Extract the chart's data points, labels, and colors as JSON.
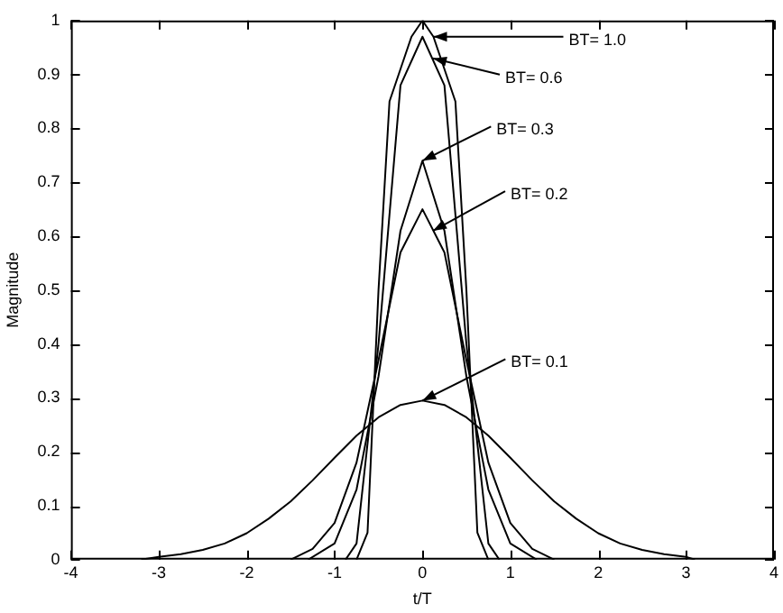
{
  "chart_data": {
    "type": "line",
    "xlabel": "t/T",
    "ylabel": "Magnitude",
    "marker": "none",
    "line_style": "solid",
    "grid": false,
    "legend": false,
    "xlim": [
      -4,
      4
    ],
    "xticks": [
      -4,
      -3,
      -2,
      -1,
      0,
      1,
      2,
      3,
      4
    ],
    "ylim": [
      0,
      1
    ],
    "yticks": [
      0,
      0.1,
      0.2,
      0.3,
      0.4,
      0.5,
      0.6,
      0.7,
      0.8,
      0.9,
      1
    ],
    "series": [
      {
        "color": "#000000",
        "x": [
          -3.2,
          -3,
          -2.75,
          -2.5,
          -2.25,
          -2,
          -1.75,
          -1.5,
          -1.25,
          -1,
          -0.75,
          -0.5,
          -0.25,
          0,
          0.25,
          0.5,
          0.75,
          1,
          1.25,
          1.5,
          1.75,
          2,
          2.25,
          2.5,
          2.75,
          3,
          3.1
        ],
        "values": [
          0,
          0.005,
          0.01,
          0.018,
          0.03,
          0.049,
          0.076,
          0.108,
          0.147,
          0.189,
          0.23,
          0.264,
          0.287,
          0.295,
          0.287,
          0.264,
          0.23,
          0.189,
          0.147,
          0.108,
          0.076,
          0.049,
          0.03,
          0.018,
          0.01,
          0.005,
          0
        ]
      },
      {
        "color": "#000000",
        "x": [
          -1.5,
          -1.25,
          -1,
          -0.75,
          -0.5,
          -0.25,
          0,
          0.25,
          0.5,
          0.75,
          1,
          1.25,
          1.5
        ],
        "values": [
          0,
          0.02,
          0.068,
          0.18,
          0.37,
          0.57,
          0.65,
          0.57,
          0.37,
          0.18,
          0.068,
          0.02,
          0
        ]
      },
      {
        "color": "#000000",
        "x": [
          -1.3,
          -1,
          -0.75,
          -0.5,
          -0.25,
          0,
          0.25,
          0.5,
          0.75,
          1,
          1.3
        ],
        "values": [
          0,
          0.03,
          0.13,
          0.34,
          0.61,
          0.74,
          0.61,
          0.34,
          0.13,
          0.03,
          0
        ]
      },
      {
        "color": "#000000",
        "x": [
          -0.875,
          -0.75,
          -0.5,
          -0.25,
          0,
          0.25,
          0.5,
          0.75,
          0.875
        ],
        "values": [
          0,
          0.03,
          0.4,
          0.88,
          0.97,
          0.88,
          0.4,
          0.03,
          0
        ]
      },
      {
        "color": "#000000",
        "x": [
          -0.75,
          -0.625,
          -0.5,
          -0.375,
          -0.125,
          0,
          0.125,
          0.375,
          0.5,
          0.625,
          0.75
        ],
        "values": [
          0,
          0.05,
          0.5,
          0.85,
          0.97,
          1.0,
          0.97,
          0.85,
          0.5,
          0.05,
          0
        ]
      }
    ],
    "annotations": [
      {
        "text": "BT= 1.0",
        "x": 0.125,
        "y": 0.97
      },
      {
        "text": "BT= 0.6",
        "x": 0.12,
        "y": 0.93
      },
      {
        "text": "BT= 0.3",
        "x": 0,
        "y": 0.74
      },
      {
        "text": "BT= 0.2",
        "x": 0.12,
        "y": 0.61
      },
      {
        "text": "BT= 0.1",
        "x": 0,
        "y": 0.295
      }
    ]
  }
}
